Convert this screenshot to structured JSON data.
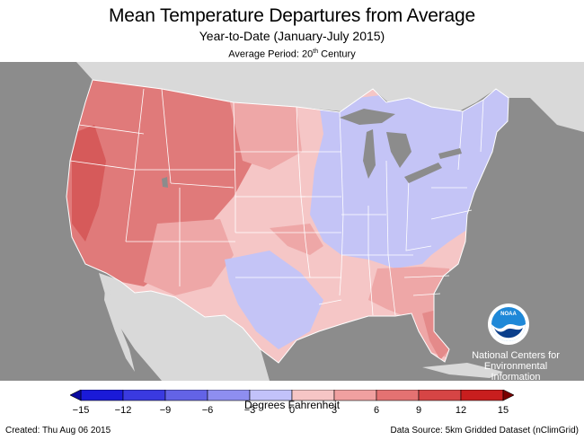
{
  "title": "Mean Temperature Departures from Average",
  "subtitle": "Year-to-Date (January-July 2015)",
  "period_prefix": "Average Period: 20",
  "period_sup": "th",
  "period_suffix": " Century",
  "logo_text": "NOAA",
  "agency_line1": "National Centers for",
  "agency_line2": "Environmental",
  "agency_line3": "Information",
  "legend": {
    "title": "Degrees Fahrenheit",
    "ticks": [
      "−15",
      "−12",
      "−9",
      "−6",
      "−3",
      "0",
      "3",
      "6",
      "9",
      "12",
      "15"
    ],
    "colors": [
      "#1a1ad8",
      "#3a3ae0",
      "#6363e6",
      "#8e8ef0",
      "#c2c2fa",
      "#f6c5c5",
      "#f0a0a0",
      "#e47272",
      "#d64545",
      "#c81e1e"
    ]
  },
  "created": "Created: Thu Aug 06 2015",
  "source": "Data Source: 5km Gridded Dataset (nClimGrid)",
  "colors": {
    "background_gray": "#8c8c8c",
    "land_gray": "#d9d9d9",
    "warm_strong": "#e07a7a",
    "warm_mid": "#eea7a7",
    "warm_light": "#f5c6c6",
    "cool": "#c4c4f6",
    "border": "#ffffff"
  }
}
